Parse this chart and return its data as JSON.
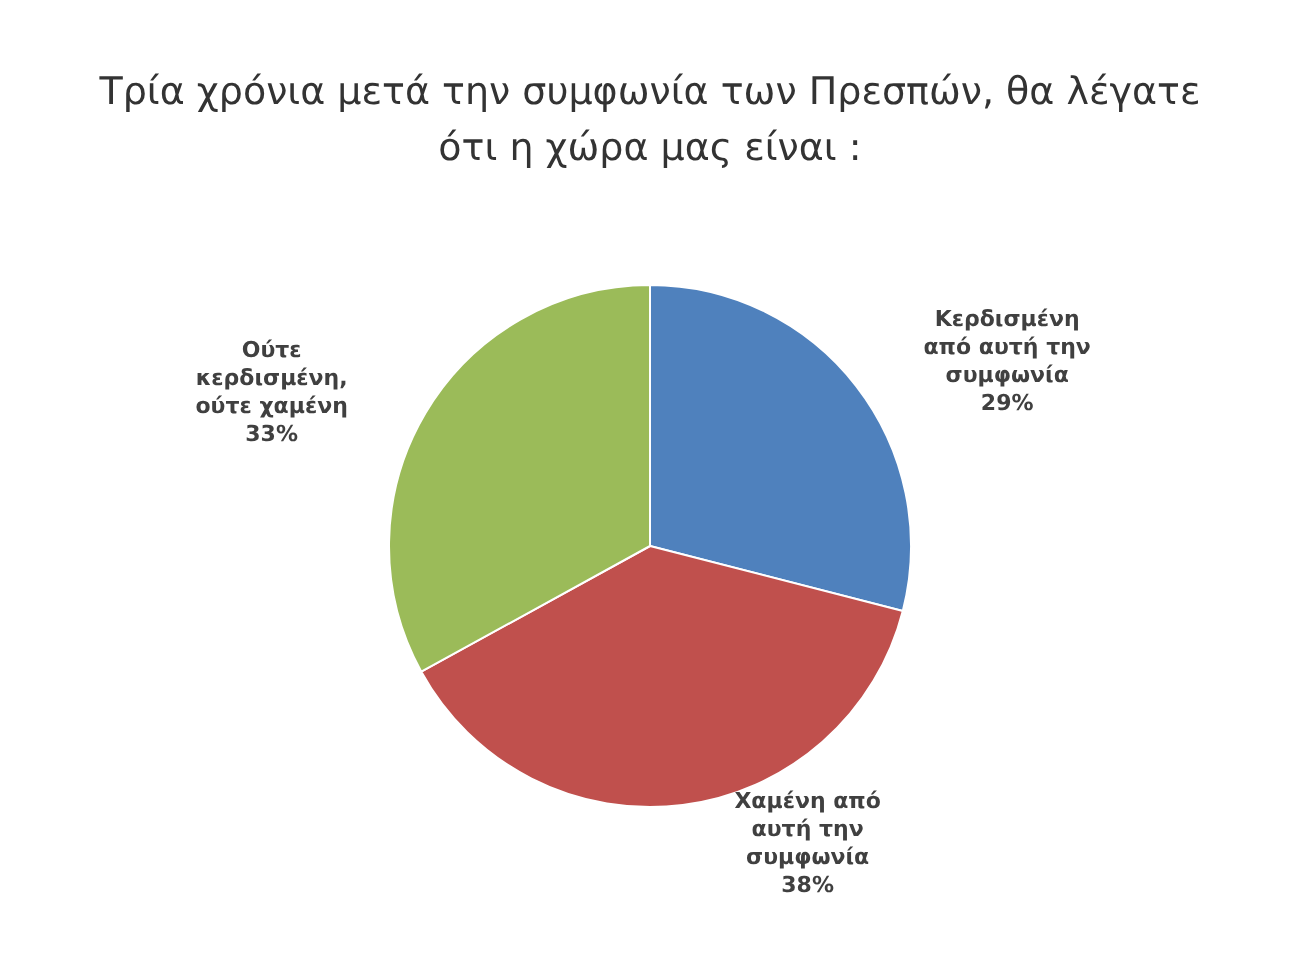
{
  "chart_data": {
    "type": "pie",
    "title": "Τρία χρόνια μετά την συμφωνία των Πρεσπών, θα λέγατε ότι η χώρα μας είναι :",
    "categories": [
      "Κερδισμένη από αυτή την συμφωνία",
      "Χαμένη από αυτή την συμφωνία",
      "Ούτε κερδισμένη, ούτε χαμένη"
    ],
    "values": [
      29,
      38,
      33
    ],
    "colors": [
      "#4f81bd",
      "#c0504d",
      "#9bbb59"
    ],
    "value_labels": [
      "29%",
      "38%",
      "33%"
    ],
    "legend": false
  }
}
